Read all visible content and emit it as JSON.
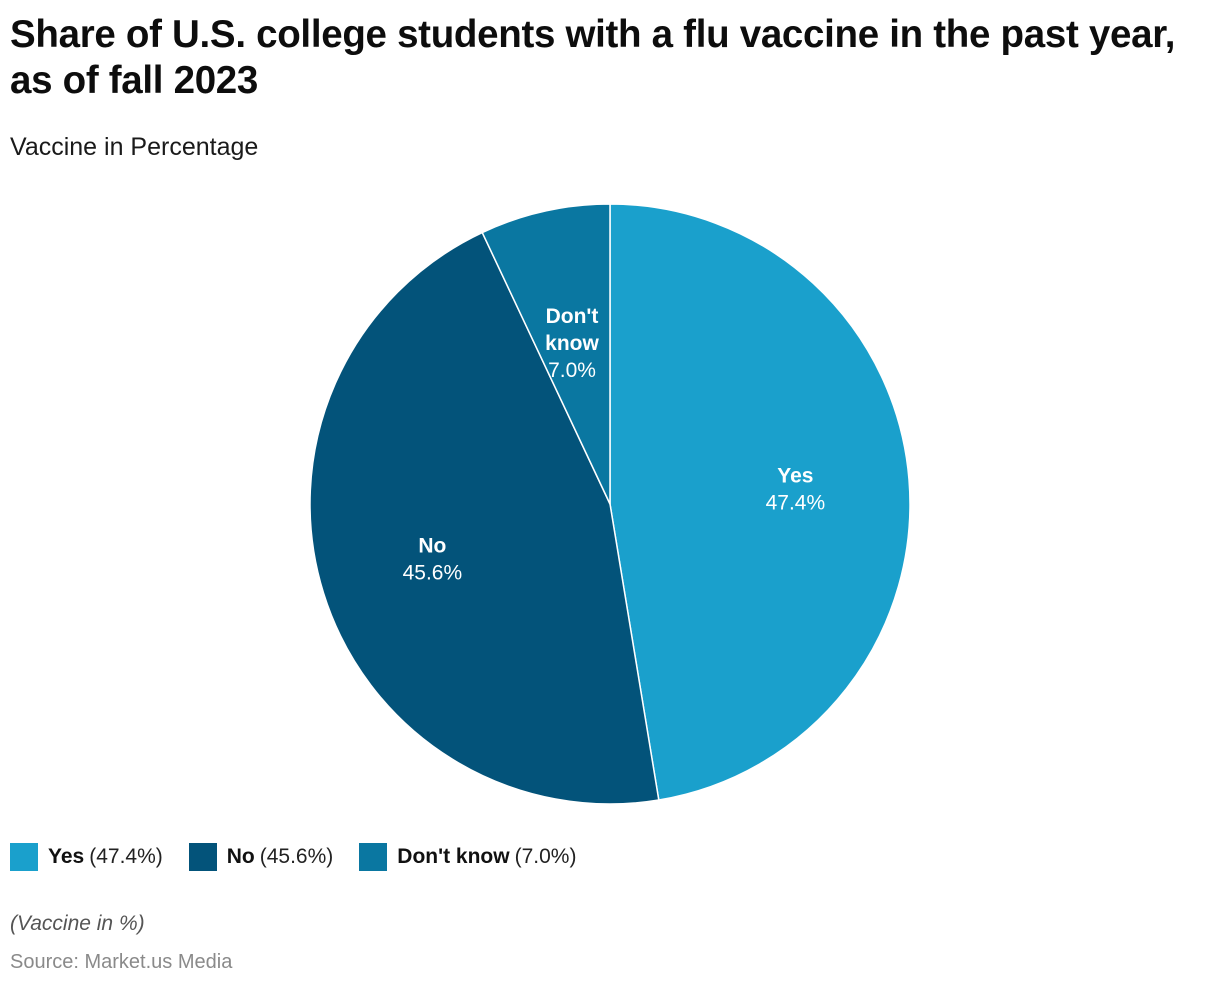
{
  "header": {
    "title": "Share of U.S. college students with a flu vaccine in the past year, as of fall 2023",
    "subtitle": "Vaccine in Percentage"
  },
  "chart_data": {
    "type": "pie",
    "title": "Share of U.S. college students with a flu vaccine in the past year, as of fall 2023",
    "subtitle": "Vaccine in Percentage",
    "unit": "%",
    "slices": [
      {
        "name": "Yes",
        "value": 47.4,
        "label": "47.4%",
        "color": "#1aa0cc"
      },
      {
        "name": "No",
        "value": 45.6,
        "label": "45.6%",
        "color": "#03537a"
      },
      {
        "name": "Don't know",
        "value": 7.0,
        "label": "7.0%",
        "color": "#0a77a1"
      }
    ],
    "legend_placement": "bottom-left"
  },
  "legend": {
    "items": [
      {
        "name": "Yes",
        "value": "(47.4%)",
        "color": "#1aa0cc"
      },
      {
        "name": "No",
        "value": "(45.6%)",
        "color": "#03537a"
      },
      {
        "name": "Don't know",
        "value": "(7.0%)",
        "color": "#0a77a1"
      }
    ]
  },
  "footer": {
    "note": "(Vaccine in %)",
    "source": "Source: Market.us Media"
  }
}
